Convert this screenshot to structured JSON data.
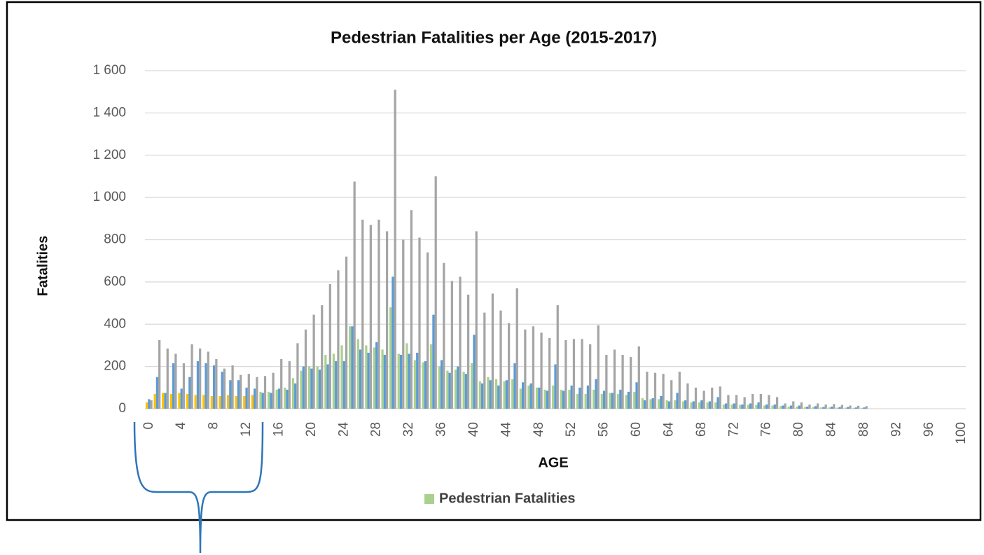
{
  "chart_data": {
    "type": "bar",
    "title": "Pedestrian Fatalities per Age (2015-2017)",
    "x_label": "AGE",
    "y_label": "Fatalities",
    "categories": [
      0,
      null,
      null,
      null,
      4,
      null,
      null,
      null,
      8,
      null,
      null,
      null,
      12,
      null,
      null,
      null,
      16,
      null,
      null,
      null,
      20,
      null,
      null,
      null,
      24,
      null,
      null,
      null,
      28,
      null,
      null,
      null,
      32,
      null,
      null,
      null,
      36,
      null,
      null,
      null,
      40,
      null,
      null,
      null,
      44,
      null,
      null,
      null,
      48,
      null,
      null,
      null,
      52,
      null,
      null,
      null,
      56,
      null,
      null,
      null,
      60,
      null,
      null,
      null,
      64,
      null,
      null,
      null,
      68,
      null,
      null,
      null,
      72,
      null,
      null,
      null,
      76,
      null,
      null,
      null,
      80,
      null,
      null,
      null,
      84,
      null,
      null,
      null,
      88,
      null,
      null,
      null,
      92,
      null,
      null,
      null,
      96,
      null,
      null,
      null,
      100
    ],
    "series": [
      {
        "name": "Pedestrian Fatalities",
        "color": "#a9d18e",
        "colors": [
          "#ffc000",
          "#ffc000",
          "#ffc000",
          "#ffc000",
          "#ffc000",
          "#ffc000",
          "#ffc000",
          "#ffc000",
          "#ffc000",
          "#ffc000",
          "#ffc000",
          "#ffc000",
          "#ffc000",
          "#ffc000",
          "#a9d18e",
          "#a9d18e",
          "#a9d18e",
          "#a9d18e",
          "#a9d18e",
          "#a9d18e",
          "#a9d18e",
          "#a9d18e",
          "#a9d18e",
          "#a9d18e",
          "#a9d18e",
          "#a9d18e",
          "#a9d18e",
          "#a9d18e",
          "#a9d18e",
          "#a9d18e",
          "#a9d18e",
          "#a9d18e",
          "#a9d18e",
          "#a9d18e",
          "#a9d18e",
          "#a9d18e",
          "#a9d18e",
          "#a9d18e",
          "#a9d18e",
          "#a9d18e",
          "#a9d18e",
          "#a9d18e",
          "#a9d18e",
          "#a9d18e",
          "#a9d18e",
          "#a9d18e",
          "#a9d18e",
          "#a9d18e",
          "#a9d18e",
          "#a9d18e",
          "#a9d18e",
          "#a9d18e",
          "#a9d18e",
          "#a9d18e",
          "#a9d18e",
          "#a9d18e",
          "#a9d18e",
          "#a9d18e",
          "#a9d18e",
          "#a9d18e",
          "#a9d18e",
          "#a9d18e",
          "#a9d18e",
          "#a9d18e",
          "#a9d18e",
          "#a9d18e",
          "#a9d18e",
          "#a9d18e",
          "#a9d18e",
          "#a9d18e",
          "#a9d18e",
          "#a9d18e",
          "#a9d18e",
          "#a9d18e",
          "#a9d18e",
          "#a9d18e",
          "#a9d18e",
          "#a9d18e",
          "#a9d18e",
          "#a9d18e",
          "#a9d18e",
          "#a9d18e",
          "#a9d18e",
          "#a9d18e",
          "#a9d18e",
          "#a9d18e",
          "#a9d18e",
          "#a9d18e",
          "#a9d18e",
          "#a9d18e",
          "#a9d18e",
          "#a9d18e",
          "#a9d18e",
          "#a9d18e",
          "#a9d18e",
          "#a9d18e",
          "#a9d18e",
          "#a9d18e",
          "#a9d18e",
          "#a9d18e",
          "#a9d18e"
        ],
        "values": [
          30,
          70,
          75,
          70,
          75,
          70,
          65,
          65,
          60,
          60,
          65,
          60,
          60,
          65,
          80,
          80,
          90,
          100,
          145,
          180,
          200,
          200,
          255,
          260,
          300,
          390,
          330,
          300,
          290,
          280,
          480,
          260,
          310,
          230,
          220,
          305,
          200,
          180,
          185,
          175,
          215,
          130,
          150,
          140,
          130,
          140,
          95,
          110,
          100,
          90,
          110,
          90,
          90,
          70,
          70,
          90,
          70,
          75,
          70,
          65,
          80,
          50,
          45,
          45,
          40,
          40,
          35,
          30,
          30,
          30,
          30,
          20,
          20,
          18,
          18,
          18,
          15,
          15,
          12,
          10,
          10,
          8,
          8,
          6,
          6,
          5,
          5,
          4,
          4,
          0,
          0,
          0,
          0,
          0,
          0,
          0,
          0,
          0,
          0,
          0,
          0
        ]
      },
      {
        "color": "#5b9bd5",
        "values": [
          45,
          150,
          75,
          215,
          95,
          150,
          225,
          215,
          205,
          175,
          135,
          135,
          100,
          95,
          75,
          75,
          95,
          90,
          120,
          200,
          190,
          185,
          210,
          225,
          225,
          390,
          280,
          265,
          315,
          255,
          625,
          255,
          260,
          265,
          225,
          445,
          230,
          170,
          200,
          165,
          350,
          120,
          135,
          110,
          135,
          215,
          125,
          120,
          100,
          85,
          210,
          85,
          110,
          100,
          110,
          140,
          85,
          75,
          90,
          80,
          125,
          40,
          50,
          60,
          35,
          75,
          40,
          35,
          40,
          35,
          55,
          25,
          25,
          20,
          25,
          30,
          20,
          20,
          15,
          15,
          15,
          10,
          12,
          8,
          10,
          8,
          8,
          6,
          6,
          0,
          0,
          0,
          0,
          0,
          0,
          0,
          0,
          0,
          0,
          0,
          0
        ]
      },
      {
        "color": "#a5a5a5",
        "values": [
          40,
          325,
          285,
          260,
          215,
          305,
          285,
          270,
          235,
          190,
          205,
          160,
          165,
          150,
          155,
          170,
          235,
          225,
          310,
          375,
          445,
          490,
          590,
          655,
          720,
          1075,
          895,
          870,
          895,
          840,
          1510,
          800,
          940,
          810,
          740,
          1100,
          690,
          605,
          625,
          540,
          840,
          455,
          545,
          465,
          405,
          570,
          375,
          390,
          360,
          335,
          490,
          325,
          330,
          330,
          305,
          395,
          255,
          280,
          255,
          245,
          295,
          175,
          170,
          165,
          135,
          175,
          120,
          100,
          85,
          100,
          105,
          65,
          65,
          55,
          70,
          70,
          65,
          55,
          25,
          35,
          30,
          20,
          25,
          20,
          22,
          18,
          15,
          14,
          12,
          0,
          0,
          0,
          0,
          0,
          0,
          0,
          0,
          0,
          0,
          0,
          0
        ]
      }
    ],
    "ylim": [
      0,
      1600
    ],
    "yticks": [
      0,
      200,
      400,
      600,
      800,
      {
        "value": 1000,
        "label": "1 000"
      },
      {
        "value": 1200,
        "label": "1 200"
      },
      {
        "value": 1400,
        "label": "1 400"
      },
      {
        "value": 1600,
        "label": "1 600"
      }
    ],
    "grid": true,
    "legend": "bottom"
  }
}
